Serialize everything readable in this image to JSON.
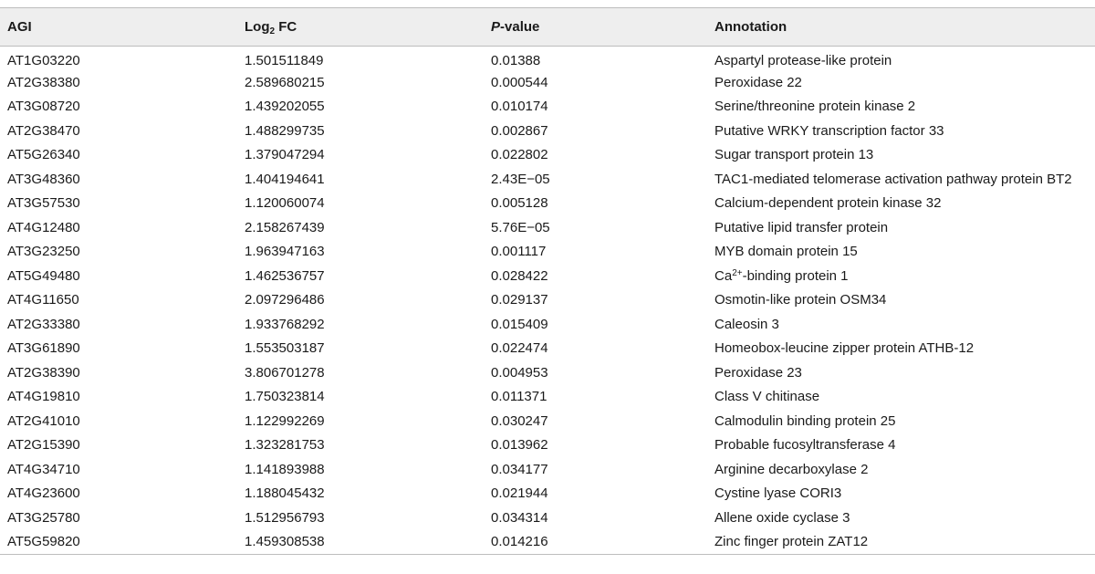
{
  "table": {
    "headers": {
      "agi": "AGI",
      "fc_prefix": "Log",
      "fc_sub": "2",
      "fc_suffix": " FC",
      "p_ital": "P",
      "p_suffix": "-value",
      "annotation": "Annotation"
    },
    "rows": [
      {
        "agi": "AT1G03220",
        "fc": "1.501511849",
        "p": "0.01388",
        "ann": "Aspartyl protease-like protein"
      },
      {
        "agi": "AT2G38380",
        "fc": "2.589680215",
        "p": "0.000544",
        "ann": "Peroxidase 22"
      },
      {
        "agi": "AT3G08720",
        "fc": "1.439202055",
        "p": "0.010174",
        "ann": "Serine/threonine protein kinase 2"
      },
      {
        "agi": "AT2G38470",
        "fc": "1.488299735",
        "p": "0.002867",
        "ann": "Putative WRKY transcription factor 33"
      },
      {
        "agi": "AT5G26340",
        "fc": "1.379047294",
        "p": "0.022802",
        "ann": "Sugar transport protein 13"
      },
      {
        "agi": "AT3G48360",
        "fc": "1.404194641",
        "p": "2.43E−05",
        "ann": "TAC1-mediated telomerase activation pathway protein BT2"
      },
      {
        "agi": "AT3G57530",
        "fc": "1.120060074",
        "p": "0.005128",
        "ann": "Calcium-dependent protein kinase 32"
      },
      {
        "agi": "AT4G12480",
        "fc": "2.158267439",
        "p": "5.76E−05",
        "ann": "Putative lipid transfer protein"
      },
      {
        "agi": "AT3G23250",
        "fc": "1.963947163",
        "p": "0.001117",
        "ann": "MYB domain protein 15"
      },
      {
        "agi": "AT5G49480",
        "fc": "1.462536757",
        "p": "0.028422",
        "ann_prefix": "Ca",
        "ann_sup": "2+",
        "ann_suffix": "-binding protein 1"
      },
      {
        "agi": "AT4G11650",
        "fc": "2.097296486",
        "p": "0.029137",
        "ann": "Osmotin-like protein OSM34"
      },
      {
        "agi": "AT2G33380",
        "fc": "1.933768292",
        "p": "0.015409",
        "ann": "Caleosin 3"
      },
      {
        "agi": "AT3G61890",
        "fc": "1.553503187",
        "p": "0.022474",
        "ann": "Homeobox-leucine zipper protein ATHB-12"
      },
      {
        "agi": "AT2G38390",
        "fc": "3.806701278",
        "p": "0.004953",
        "ann": "Peroxidase 23"
      },
      {
        "agi": "AT4G19810",
        "fc": "1.750323814",
        "p": "0.011371",
        "ann": "Class V chitinase"
      },
      {
        "agi": "AT2G41010",
        "fc": "1.122992269",
        "p": "0.030247",
        "ann": "Calmodulin binding protein 25"
      },
      {
        "agi": "AT2G15390",
        "fc": "1.323281753",
        "p": "0.013962",
        "ann": "Probable fucosyltransferase 4"
      },
      {
        "agi": "AT4G34710",
        "fc": "1.141893988",
        "p": "0.034177",
        "ann": "Arginine decarboxylase 2"
      },
      {
        "agi": "AT4G23600",
        "fc": "1.188045432",
        "p": "0.021944",
        "ann": "Cystine lyase CORI3"
      },
      {
        "agi": "AT3G25780",
        "fc": "1.512956793",
        "p": "0.034314",
        "ann": "Allene oxide cyclase 3"
      },
      {
        "agi": "AT5G59820",
        "fc": "1.459308538",
        "p": "0.014216",
        "ann": "Zinc finger protein ZAT12"
      }
    ]
  }
}
